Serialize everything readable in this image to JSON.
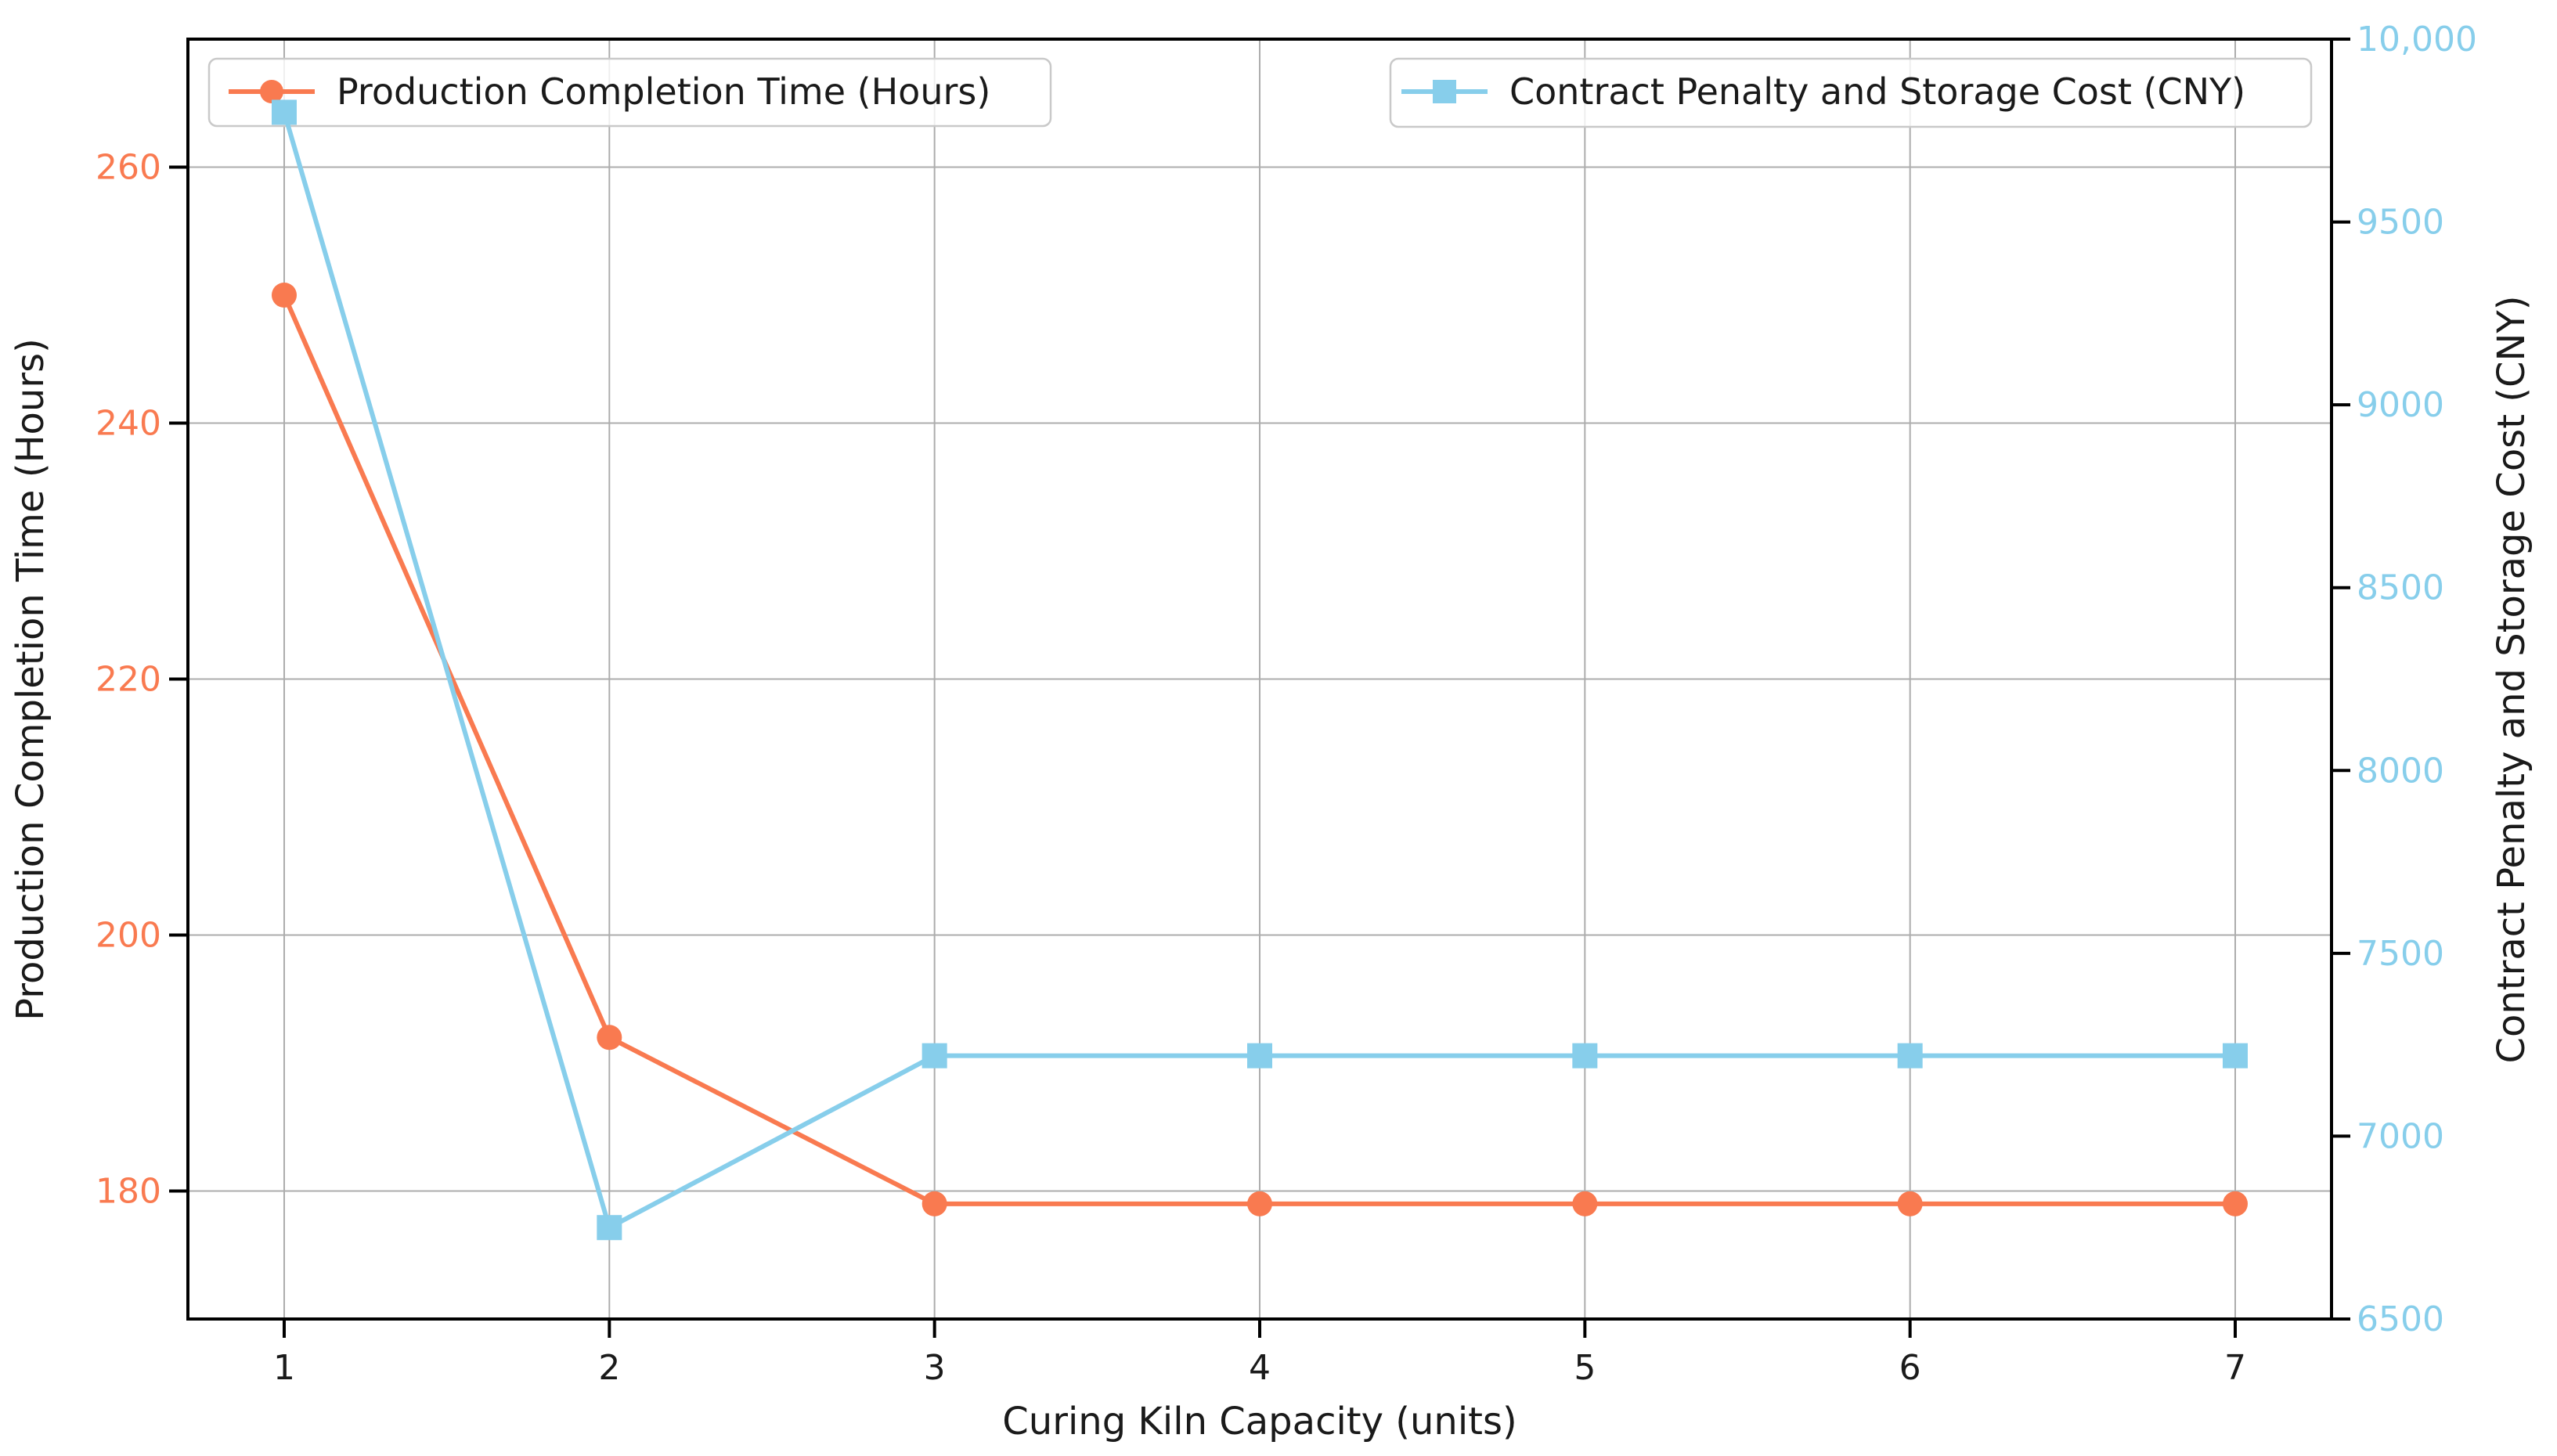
{
  "chart_data": {
    "type": "line",
    "title": "",
    "xlabel": "Curing Kiln Capacity (units)",
    "x": [
      1,
      2,
      3,
      4,
      5,
      6,
      7
    ],
    "x_tick_labels": [
      "1",
      "2",
      "3",
      "4",
      "5",
      "6",
      "7"
    ],
    "left_axis": {
      "label": "Production Completion Time (Hours)",
      "min": 170,
      "max": 270,
      "ticks": [
        180,
        200,
        220,
        240,
        260
      ],
      "tick_labels": [
        "180",
        "200",
        "220",
        "240",
        "260"
      ],
      "tick_color": "#F97A50"
    },
    "right_axis": {
      "label": "Contract Penalty and Storage Cost (CNY)",
      "min": 6500,
      "max": 10000,
      "ticks": [
        6500,
        7000,
        7500,
        8000,
        8500,
        9000,
        9500,
        10000
      ],
      "tick_labels": [
        "6500",
        "7000",
        "7500",
        "8000",
        "8500",
        "9000",
        "9500",
        "10,000"
      ],
      "tick_color": "#87CEEB"
    },
    "series": [
      {
        "name": "Production Completion Time (Hours)",
        "axis": "left",
        "color": "#F97A50",
        "marker": "circle",
        "values": [
          250,
          192,
          179,
          179,
          179,
          179,
          179
        ]
      },
      {
        "name": "Contract Penalty and Storage Cost (CNY)",
        "axis": "right",
        "color": "#87CEEB",
        "marker": "square",
        "values": [
          9800,
          6750,
          7220,
          7220,
          7220,
          7220,
          7220
        ]
      }
    ],
    "grid": true,
    "legend_position": [
      "upper left",
      "upper center-right"
    ],
    "colors": {
      "grid": "#ADADAD",
      "spine": "#000000",
      "text": "#1A1A1A",
      "legend_border": "#C9C9C9",
      "legend_bg_alpha": "0.8"
    }
  }
}
